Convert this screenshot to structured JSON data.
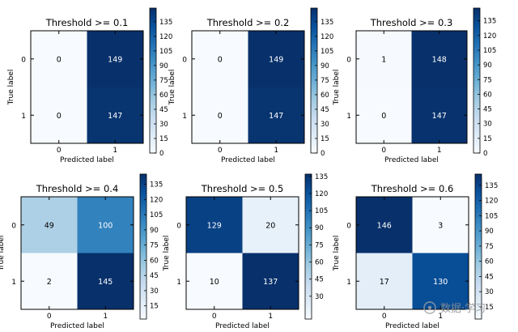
{
  "chart_data": [
    {
      "type": "heatmap",
      "title": "Threshold >= 0.1",
      "xlabel": "Predicted label",
      "ylabel": "True label",
      "x_ticks": [
        "0",
        "1"
      ],
      "y_ticks": [
        "0",
        "1"
      ],
      "matrix": [
        [
          0,
          149
        ],
        [
          0,
          147
        ]
      ],
      "colorbar": {
        "ticks": [
          0,
          15,
          30,
          45,
          60,
          75,
          90,
          105,
          120,
          135
        ],
        "max": 149
      }
    },
    {
      "type": "heatmap",
      "title": "Threshold >= 0.2",
      "xlabel": "Predicted label",
      "ylabel": "True label",
      "x_ticks": [
        "0",
        "1"
      ],
      "y_ticks": [
        "0",
        "1"
      ],
      "matrix": [
        [
          0,
          149
        ],
        [
          0,
          147
        ]
      ],
      "colorbar": {
        "ticks": [
          0,
          15,
          30,
          45,
          60,
          75,
          90,
          105,
          120,
          135
        ],
        "max": 149
      }
    },
    {
      "type": "heatmap",
      "title": "Threshold >= 0.3",
      "xlabel": "Predicted label",
      "ylabel": "True label",
      "x_ticks": [
        "0",
        "1"
      ],
      "y_ticks": [
        "0",
        "1"
      ],
      "matrix": [
        [
          1,
          148
        ],
        [
          0,
          147
        ]
      ],
      "colorbar": {
        "ticks": [
          0,
          15,
          30,
          45,
          60,
          75,
          90,
          105,
          120,
          135
        ],
        "max": 148
      }
    },
    {
      "type": "heatmap",
      "title": "Threshold >= 0.4",
      "xlabel": "Predicted label",
      "ylabel": "True label",
      "x_ticks": [
        "0",
        "1"
      ],
      "y_ticks": [
        "0",
        "1"
      ],
      "matrix": [
        [
          49,
          100
        ],
        [
          2,
          145
        ]
      ],
      "colorbar": {
        "ticks": [
          15,
          30,
          45,
          60,
          75,
          90,
          105,
          120,
          135
        ],
        "max": 145
      }
    },
    {
      "type": "heatmap",
      "title": "Threshold >= 0.5",
      "xlabel": "Predicted label",
      "ylabel": "True label",
      "x_ticks": [
        "0",
        "1"
      ],
      "y_ticks": [
        "0",
        "1"
      ],
      "matrix": [
        [
          129,
          20
        ],
        [
          10,
          137
        ]
      ],
      "colorbar": {
        "ticks": [
          30,
          45,
          60,
          75,
          90,
          105,
          120,
          135
        ],
        "max": 137
      }
    },
    {
      "type": "heatmap",
      "title": "Threshold >= 0.6",
      "xlabel": "Predicted label",
      "ylabel": "True label",
      "x_ticks": [
        "0",
        "1"
      ],
      "y_ticks": [
        "0",
        "1"
      ],
      "matrix": [
        [
          146,
          3
        ],
        [
          17,
          130
        ]
      ],
      "colorbar": {
        "ticks": [
          15,
          30,
          45,
          60,
          75,
          90,
          105,
          120,
          135
        ],
        "max": 146
      }
    }
  ],
  "colormap": {
    "name": "Blues",
    "low": "#f7fbff",
    "high": "#08306b"
  },
  "watermark": {
    "text": "数据·学习"
  }
}
